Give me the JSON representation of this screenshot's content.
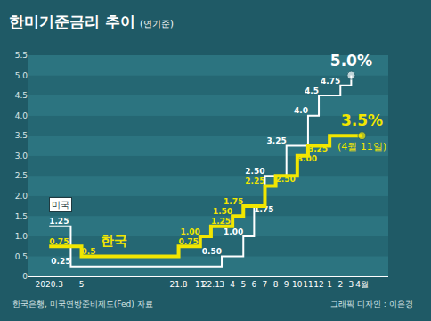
{
  "chart_data": {
    "type": "line",
    "title": "한미기준금리 추이",
    "subtitle": "(연기준)",
    "categories": [
      "2020.3",
      null,
      null,
      "5",
      null,
      null,
      null,
      null,
      null,
      null,
      null,
      null,
      "21.8",
      null,
      "11",
      "22.1",
      "3",
      "4",
      "5",
      "6",
      "7",
      "8",
      "9",
      "10",
      "11",
      "12",
      "1",
      "2",
      "3",
      "4월"
    ],
    "series": [
      {
        "name": "미국",
        "color": "#ffffff",
        "values": [
          1.25,
          1.25,
          0.25,
          0.25,
          0.25,
          0.25,
          0.25,
          0.25,
          0.25,
          0.25,
          0.25,
          0.25,
          0.25,
          0.25,
          0.25,
          0.25,
          0.5,
          0.5,
          1.0,
          1.75,
          2.5,
          2.5,
          3.25,
          3.25,
          4.0,
          4.5,
          4.5,
          4.75,
          5.0,
          null
        ],
        "value_labels": [
          "1.25",
          null,
          "0.25",
          null,
          null,
          null,
          null,
          null,
          null,
          null,
          null,
          null,
          null,
          null,
          null,
          null,
          "0.50",
          null,
          "1.00",
          "1.75",
          "2.50",
          null,
          "3.25",
          null,
          "4.0",
          "4.5",
          null,
          "4.75",
          "5.0%",
          null
        ]
      },
      {
        "name": "한국",
        "color": "#f2e600",
        "values": [
          0.75,
          0.75,
          0.75,
          0.5,
          0.5,
          0.5,
          0.5,
          0.5,
          0.5,
          0.5,
          0.5,
          0.5,
          0.75,
          0.75,
          1.0,
          1.25,
          1.25,
          1.5,
          1.75,
          1.75,
          2.25,
          2.5,
          2.5,
          3.0,
          3.25,
          3.25,
          3.5,
          3.5,
          3.5,
          3.5
        ],
        "value_labels": [
          "0.75",
          null,
          null,
          "0.5",
          null,
          null,
          null,
          null,
          null,
          null,
          null,
          null,
          "0.75",
          null,
          "1.00",
          "1.25",
          null,
          "1.50",
          "1.75",
          null,
          "2.25",
          "2.50",
          null,
          "3.00",
          "3.25",
          null,
          null,
          null,
          null,
          "3.5%"
        ]
      }
    ],
    "ylim": [
      0,
      5.5
    ],
    "yticks": [
      0,
      0.5,
      {
        "value": 1,
        "label": "1.0"
      },
      1.5,
      {
        "value": 2,
        "label": "2.0"
      },
      2.5,
      {
        "value": 3,
        "label": "3.0"
      },
      3.5,
      {
        "value": 4,
        "label": "4.0"
      },
      4.5,
      {
        "value": 5,
        "label": "5.0"
      },
      5.5
    ],
    "grid": true,
    "data_labels": true,
    "annotations": [
      {
        "text": "(4월 11일)",
        "x": 29,
        "y": 3.5
      }
    ],
    "source": "한국은행, 미국연방준비제도(Fed) 자료",
    "credit": "그래픽 디자인 : 이은경"
  }
}
